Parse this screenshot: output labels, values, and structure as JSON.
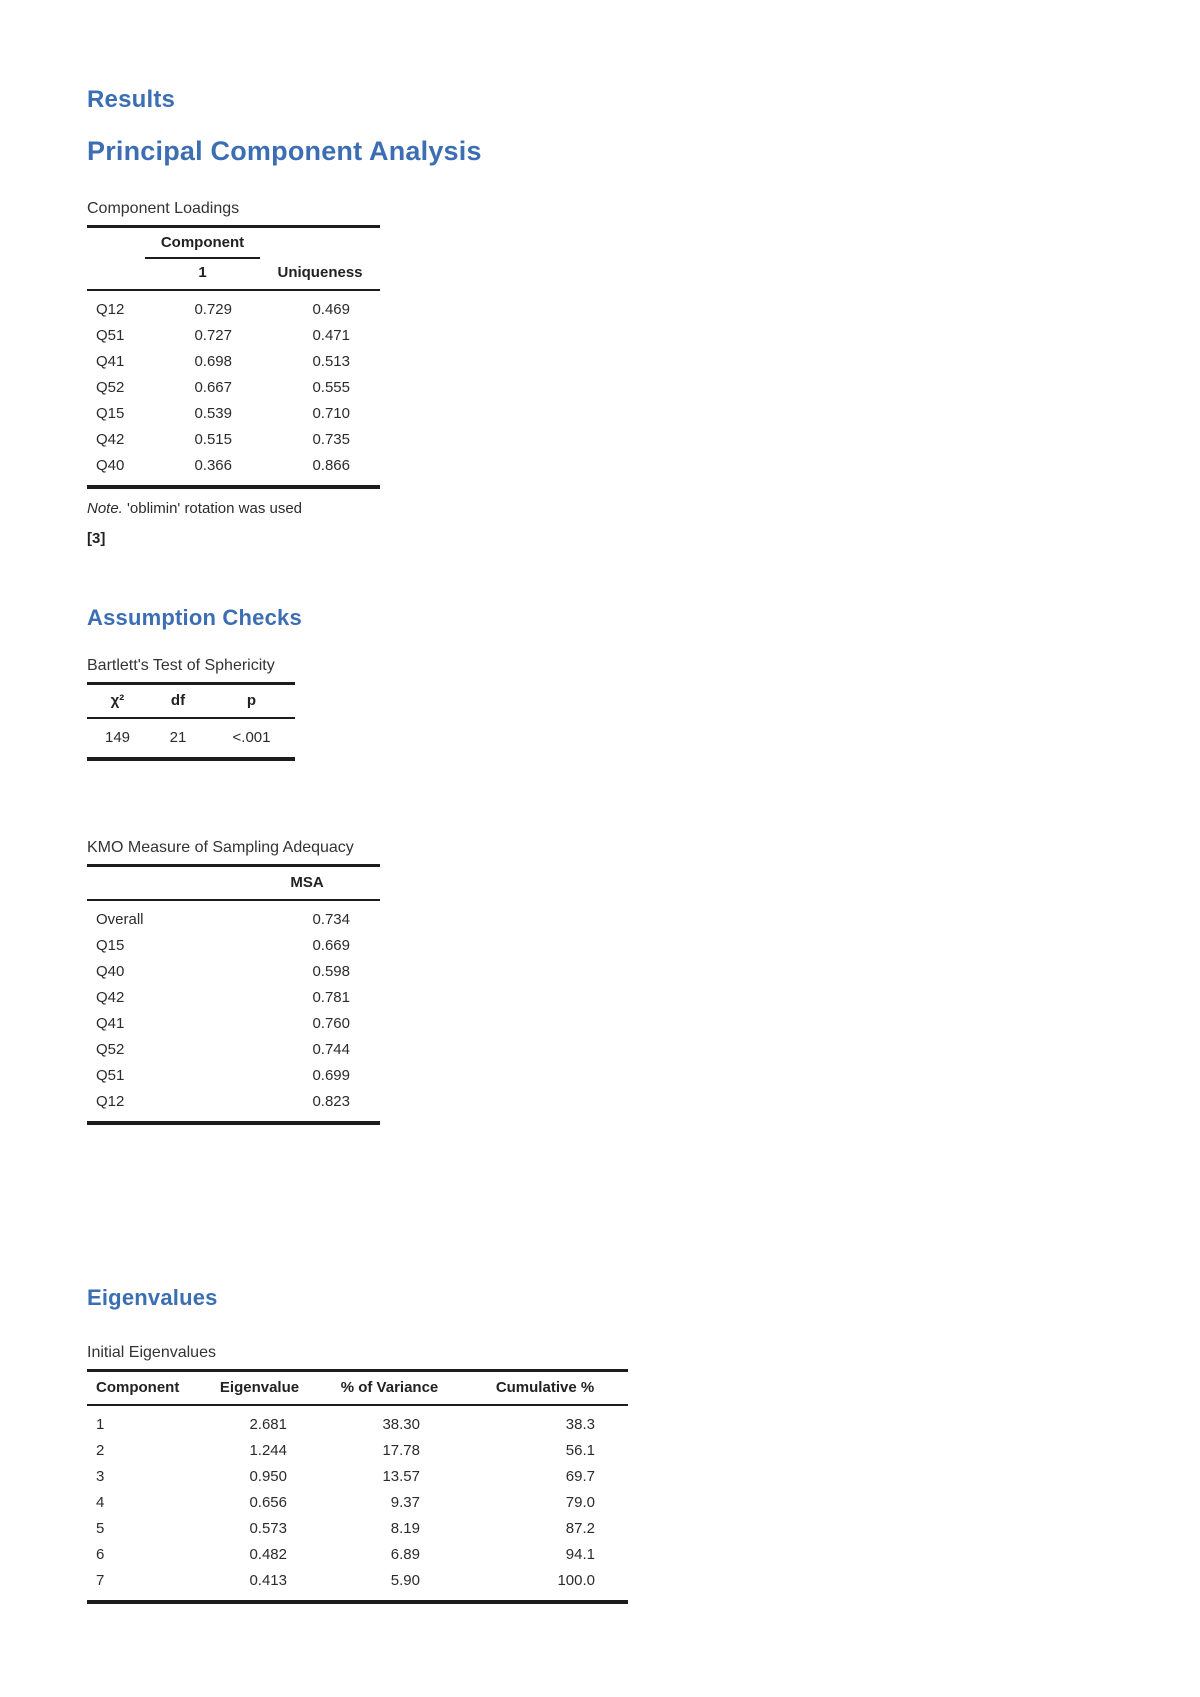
{
  "colors": {
    "heading_blue": "#3c6eb4",
    "text": "#2b2b2b",
    "border": "#1c1c1c"
  },
  "headings": {
    "results": "Results",
    "pca": "Principal Component Analysis",
    "assumption_checks": "Assumption Checks",
    "eigenvalues": "Eigenvalues"
  },
  "component_loadings": {
    "caption": "Component Loadings",
    "group_header": "Component",
    "columns": [
      "",
      "1",
      "Uniqueness"
    ],
    "rows": [
      [
        "Q12",
        "0.729",
        "0.469"
      ],
      [
        "Q51",
        "0.727",
        "0.471"
      ],
      [
        "Q41",
        "0.698",
        "0.513"
      ],
      [
        "Q52",
        "0.667",
        "0.555"
      ],
      [
        "Q15",
        "0.539",
        "0.710"
      ],
      [
        "Q42",
        "0.515",
        "0.735"
      ],
      [
        "Q40",
        "0.366",
        "0.866"
      ]
    ],
    "note_label": "Note.",
    "note_text": " 'oblimin' rotation was used",
    "footnote_marker": "[3]"
  },
  "bartlett": {
    "caption": "Bartlett's Test of Sphericity",
    "columns": [
      "χ²",
      "df",
      "p"
    ],
    "rows": [
      [
        "149",
        "21",
        "<.001"
      ]
    ]
  },
  "kmo": {
    "caption": "KMO Measure of Sampling Adequacy",
    "columns": [
      "",
      "MSA"
    ],
    "rows": [
      [
        "Overall",
        "0.734"
      ],
      [
        "Q15",
        "0.669"
      ],
      [
        "Q40",
        "0.598"
      ],
      [
        "Q42",
        "0.781"
      ],
      [
        "Q41",
        "0.760"
      ],
      [
        "Q52",
        "0.744"
      ],
      [
        "Q51",
        "0.699"
      ],
      [
        "Q12",
        "0.823"
      ]
    ]
  },
  "initial_eigenvalues": {
    "caption": "Initial Eigenvalues",
    "columns": [
      "Component",
      "Eigenvalue",
      "% of Variance",
      "Cumulative %"
    ],
    "rows": [
      [
        "1",
        "2.681",
        "38.30",
        "38.3"
      ],
      [
        "2",
        "1.244",
        "17.78",
        "56.1"
      ],
      [
        "3",
        "0.950",
        "13.57",
        "69.7"
      ],
      [
        "4",
        "0.656",
        "9.37",
        "79.0"
      ],
      [
        "5",
        "0.573",
        "8.19",
        "87.2"
      ],
      [
        "6",
        "0.482",
        "6.89",
        "94.1"
      ],
      [
        "7",
        "0.413",
        "5.90",
        "100.0"
      ]
    ]
  }
}
